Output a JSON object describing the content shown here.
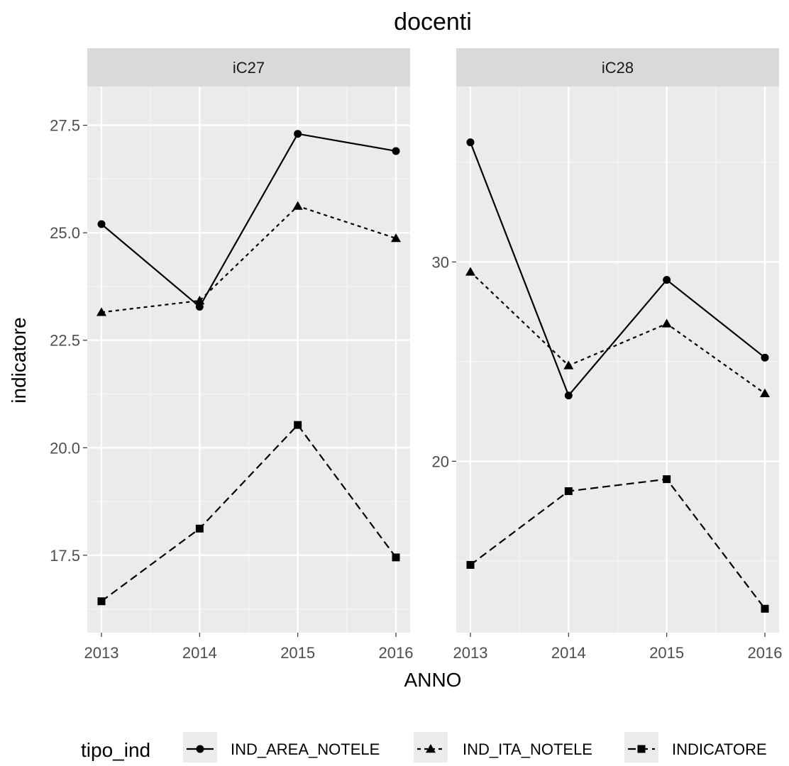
{
  "chart_data": {
    "type": "line",
    "title": "docenti",
    "xlabel": "ANNO",
    "ylabel": "indicatore",
    "x": [
      "2013",
      "2014",
      "2015",
      "2016"
    ],
    "legend": {
      "title": "tipo_ind",
      "placement": "bottom"
    },
    "series_styles": [
      {
        "name": "IND_AREA_NOTELE",
        "marker": "circle",
        "line": "solid"
      },
      {
        "name": "IND_ITA_NOTELE",
        "marker": "triangle",
        "line": "dotted"
      },
      {
        "name": "INDICATORE",
        "marker": "square",
        "line": "dashed"
      }
    ],
    "grid": true,
    "panels": [
      {
        "facet": "iC27",
        "ylim": [
          15.7,
          28.4
        ],
        "major_ticks": [
          17.5,
          20.0,
          22.5,
          25.0,
          27.5
        ],
        "tick_labels": [
          "17.5",
          "20.0",
          "22.5",
          "25.0",
          "27.5"
        ],
        "series": [
          {
            "name": "IND_AREA_NOTELE",
            "values": [
              25.2,
              23.28,
              27.3,
              26.9
            ]
          },
          {
            "name": "IND_ITA_NOTELE",
            "values": [
              23.15,
              23.42,
              25.62,
              24.87
            ]
          },
          {
            "name": "INDICATORE",
            "values": [
              16.43,
              18.12,
              20.53,
              17.45
            ]
          }
        ]
      },
      {
        "facet": "iC28",
        "ylim": [
          11.4,
          38.8
        ],
        "major_ticks": [
          20,
          30
        ],
        "tick_labels": [
          "20",
          "30"
        ],
        "series": [
          {
            "name": "IND_AREA_NOTELE",
            "values": [
              36.0,
              23.3,
              29.1,
              25.2
            ]
          },
          {
            "name": "IND_ITA_NOTELE",
            "values": [
              29.5,
              24.8,
              26.9,
              23.4
            ]
          },
          {
            "name": "INDICATORE",
            "values": [
              14.8,
              18.5,
              19.1,
              12.6
            ]
          }
        ]
      }
    ]
  }
}
